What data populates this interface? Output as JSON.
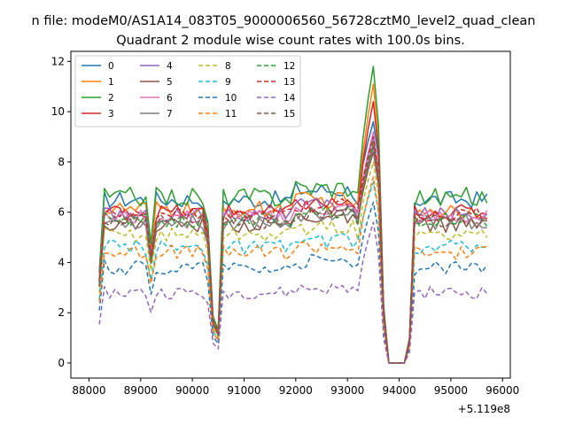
{
  "chart_data": {
    "type": "line",
    "suptitle": "n file: modeM0/AS1A14_083T05_9000006560_56728cztM0_level2_quad_clean",
    "title": "Quadrant 2 module wise count rates with 100.0s bins.",
    "xlabel": "",
    "ylabel": "",
    "offset_text": "+5.119e8",
    "xlim": [
      87650,
      96150
    ],
    "ylim": [
      -0.6,
      12.4
    ],
    "x_ticks": [
      88000,
      89000,
      90000,
      91000,
      92000,
      93000,
      94000,
      95000,
      96000
    ],
    "y_ticks": [
      0,
      2,
      4,
      6,
      8,
      10,
      12
    ],
    "x_tick_labels": [
      "88000",
      "89000",
      "90000",
      "91000",
      "92000",
      "93000",
      "94000",
      "95000",
      "96000"
    ],
    "y_tick_labels": [
      "0",
      "2",
      "4",
      "6",
      "8",
      "10",
      "12"
    ],
    "x_start": 88200,
    "x_step": 100,
    "legend_location": "upper-left",
    "legend_columns": 4,
    "grid": false,
    "series": [
      {
        "name": "0",
        "color": "#1f77b4",
        "style": "solid",
        "base": 6.5,
        "peak": 9.6,
        "noise": 0.35
      },
      {
        "name": "1",
        "color": "#ff7f0e",
        "style": "solid",
        "base": 6.1,
        "peak": 11.1,
        "noise": 0.35
      },
      {
        "name": "2",
        "color": "#2ca02c",
        "style": "solid",
        "base": 6.6,
        "peak": 11.8,
        "noise": 0.4
      },
      {
        "name": "3",
        "color": "#d62728",
        "style": "solid",
        "base": 6.0,
        "peak": 10.4,
        "noise": 0.3
      },
      {
        "name": "4",
        "color": "#9467bd",
        "style": "solid",
        "base": 5.9,
        "peak": 9.0,
        "noise": 0.3
      },
      {
        "name": "5",
        "color": "#8c564b",
        "style": "solid",
        "base": 5.5,
        "peak": 8.4,
        "noise": 0.3
      },
      {
        "name": "6",
        "color": "#e377c2",
        "style": "solid",
        "base": 5.8,
        "peak": 9.2,
        "noise": 0.3
      },
      {
        "name": "7",
        "color": "#7f7f7f",
        "style": "solid",
        "base": 5.6,
        "peak": 8.6,
        "noise": 0.3
      },
      {
        "name": "8",
        "color": "#bcbd22",
        "style": "dashed",
        "base": 5.1,
        "peak": 8.0,
        "noise": 0.3
      },
      {
        "name": "9",
        "color": "#17becf",
        "style": "dashed",
        "base": 4.6,
        "peak": 7.2,
        "noise": 0.3
      },
      {
        "name": "10",
        "color": "#1f77b4",
        "style": "dashed",
        "base": 3.8,
        "peak": 6.4,
        "noise": 0.3
      },
      {
        "name": "11",
        "color": "#ff7f0e",
        "style": "dashed",
        "base": 4.4,
        "peak": 7.4,
        "noise": 0.3
      },
      {
        "name": "12",
        "color": "#2ca02c",
        "style": "dashed",
        "base": 5.7,
        "peak": 8.8,
        "noise": 0.3
      },
      {
        "name": "13",
        "color": "#d62728",
        "style": "dashed",
        "base": 5.9,
        "peak": 9.0,
        "noise": 0.3
      },
      {
        "name": "14",
        "color": "#9467bd",
        "style": "dashed",
        "base": 2.8,
        "peak": 5.6,
        "noise": 0.25
      },
      {
        "name": "15",
        "color": "#8c564b",
        "style": "dashed",
        "base": 5.6,
        "peak": 8.7,
        "noise": 0.3
      }
    ]
  }
}
